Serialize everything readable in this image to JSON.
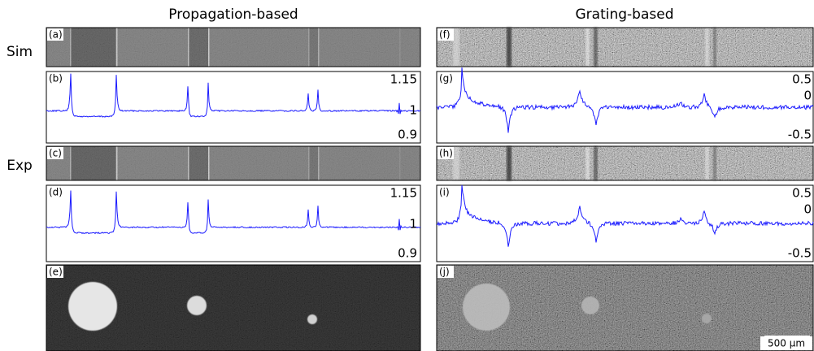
{
  "columns": [
    "Propagation-based",
    "Grating-based"
  ],
  "rows": [
    "Sim",
    "Exp"
  ],
  "panel_labels": [
    "(a)",
    "(b)",
    "(c)",
    "(d)",
    "(e)",
    "(f)",
    "(g)",
    "(h)",
    "(i)",
    "(j)"
  ],
  "left_axis_labels": [
    1.15,
    1,
    0.9
  ],
  "right_axis_labels": [
    0.5,
    0,
    -0.5
  ],
  "scale_bar": "500 µm"
}
